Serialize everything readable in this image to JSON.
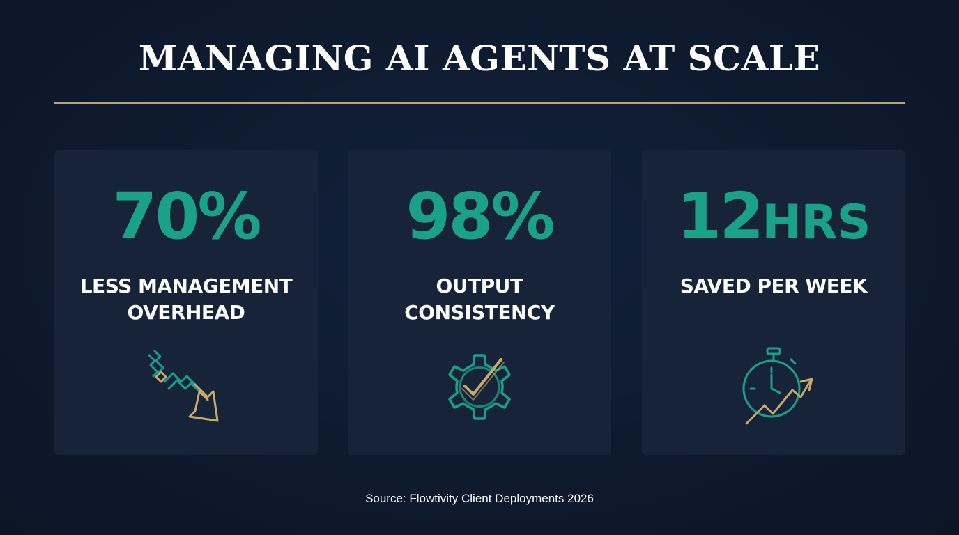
{
  "title": "MANAGING AI AGENTS AT SCALE",
  "stats": [
    {
      "value": "70%",
      "unit": "",
      "label_lines": [
        "LESS MANAGEMENT",
        "OVERHEAD"
      ],
      "icon": "downward-trend-arrow-icon"
    },
    {
      "value": "98%",
      "unit": "",
      "label_lines": [
        "OUTPUT",
        "CONSISTENCY"
      ],
      "icon": "gear-checkmark-icon"
    },
    {
      "value": "12",
      "unit": "HRS",
      "label_lines": [
        "SAVED PER WEEK"
      ],
      "icon": "stopwatch-upward-arrow-icon"
    }
  ],
  "source": "Source: Flowtivity Client Deployments 2026",
  "colors": {
    "background": "#0e1a2e",
    "card": "#162338",
    "accent_teal": "#1aa18a",
    "accent_gold": "#c8a96a",
    "divider": "#b8a57a",
    "text": "#ffffff"
  }
}
